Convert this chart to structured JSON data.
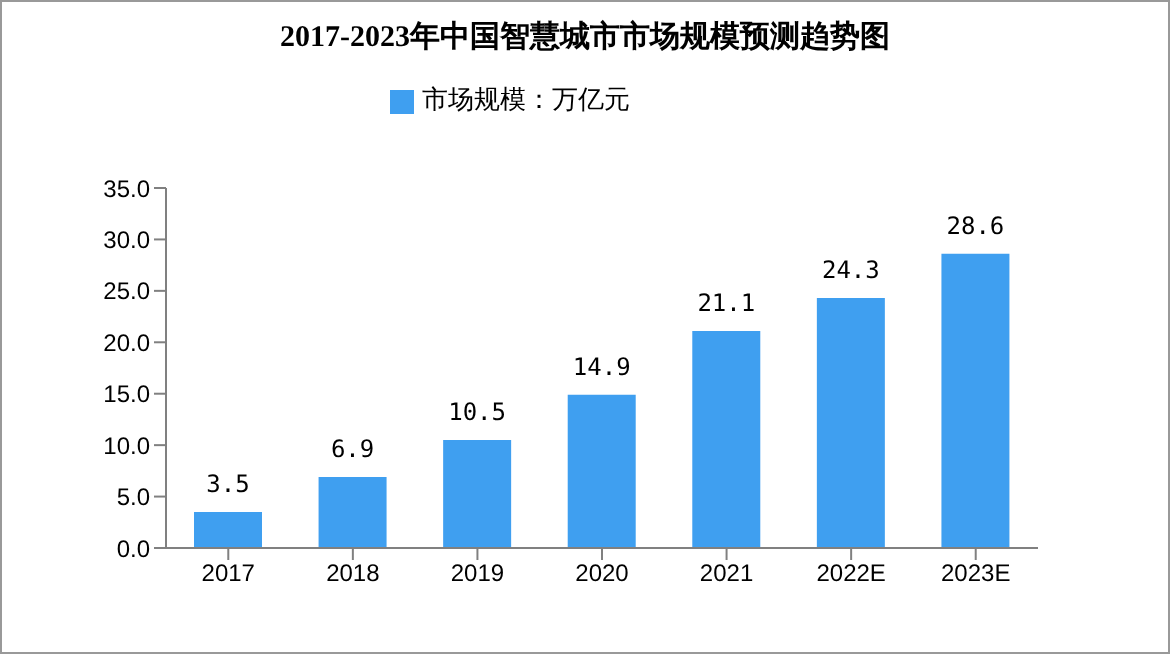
{
  "chart_data": {
    "type": "bar",
    "title": "2017-2023年中国智慧城市市场规模预测趋势图",
    "categories": [
      "2017",
      "2018",
      "2019",
      "2020",
      "2021",
      "2022E",
      "2023E"
    ],
    "series": [
      {
        "name": "市场规模：万亿元",
        "color": "#3f9ff0",
        "values": [
          3.5,
          6.9,
          10.5,
          14.9,
          21.1,
          24.3,
          28.6
        ]
      }
    ],
    "ylim": [
      0,
      35
    ],
    "yticks": [
      {
        "value": 0,
        "label": "0.0"
      },
      {
        "value": 5,
        "label": "5.0"
      },
      {
        "value": 10,
        "label": "10.0"
      },
      {
        "value": 15,
        "label": "15.0"
      },
      {
        "value": 20,
        "label": "20.0"
      },
      {
        "value": 25,
        "label": "25.0"
      },
      {
        "value": 30,
        "label": "30.0"
      },
      {
        "value": 35,
        "label": "35.0"
      }
    ],
    "grid": false,
    "legend": "top",
    "data_labels": true
  }
}
